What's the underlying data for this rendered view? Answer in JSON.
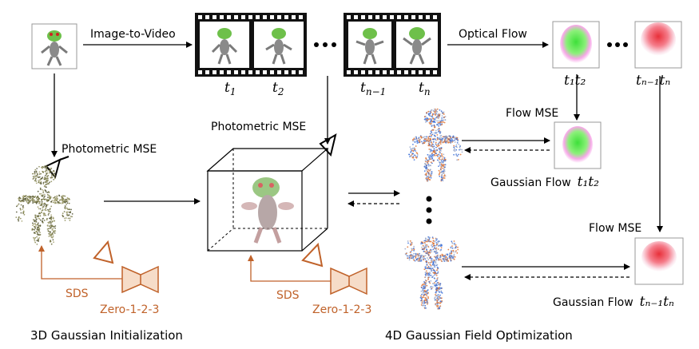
{
  "labels": {
    "image_to_video": "Image-to-Video",
    "optical_flow": "Optical Flow",
    "photometric_mse_left": "Photometric MSE",
    "photometric_mse_mid": "Photometric MSE",
    "flow_mse_top": "Flow MSE",
    "flow_mse_bottom": "Flow MSE",
    "gaussian_flow_1": "Gaussian Flow",
    "gaussian_flow_2": "Gaussian Flow",
    "sds_left": "SDS",
    "sds_mid": "SDS",
    "zero123_left": "Zero-1-2-3",
    "zero123_mid": "Zero-1-2-3"
  },
  "frames": {
    "t1": {
      "base": "t",
      "sub": "1"
    },
    "t2": {
      "base": "t",
      "sub": "2"
    },
    "tn1": {
      "base": "t",
      "sub": "n−1"
    },
    "tn": {
      "base": "t",
      "sub": "n"
    }
  },
  "flow_labels": {
    "first": "t₁t₂",
    "last": "tₙ₋₁tₙ",
    "gf_first": "t₁t₂",
    "gf_last": "tₙ₋₁tₙ"
  },
  "captions": {
    "stage1": "3D Gaussian Initialization",
    "stage2": "4D Gaussian Field Optimization"
  },
  "colors": {
    "sds": "#c0622a",
    "camera_fill": "#f6dcc8",
    "blue_points": "#3a6fd8",
    "orange_points": "#e0702a"
  }
}
